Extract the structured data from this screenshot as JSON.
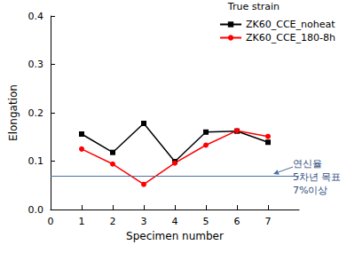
{
  "chart_data": {
    "type": "line",
    "x_label": "Specimen number",
    "y_label": "Elongation",
    "legend_title": "True strain",
    "x": [
      1,
      2,
      3,
      4,
      5,
      6,
      7
    ],
    "series": [
      {
        "name": "ZK60_CCE_noheat",
        "color": "#000000",
        "marker": "square",
        "values": [
          0.156,
          0.118,
          0.178,
          0.099,
          0.16,
          0.162,
          0.139
        ]
      },
      {
        "name": "ZK60_CCE_180-8h",
        "color": "#ff0000",
        "marker": "circle",
        "values": [
          0.125,
          0.094,
          0.052,
          0.096,
          0.133,
          0.163,
          0.151
        ]
      }
    ],
    "xlim": [
      0,
      8
    ],
    "xticks": [
      0,
      1,
      2,
      3,
      4,
      5,
      6,
      7
    ],
    "ylim": [
      0,
      0.4
    ],
    "yticks": [
      {
        "value": 0,
        "label": "0.0"
      },
      0.1,
      0.2,
      0.3,
      0.4
    ],
    "grid": false,
    "legend": "upper right",
    "reference_line": {
      "y": 0.07,
      "color": "#4a6fa5",
      "label": [
        "연신율",
        "5차년 목표",
        "7%이상"
      ]
    }
  }
}
